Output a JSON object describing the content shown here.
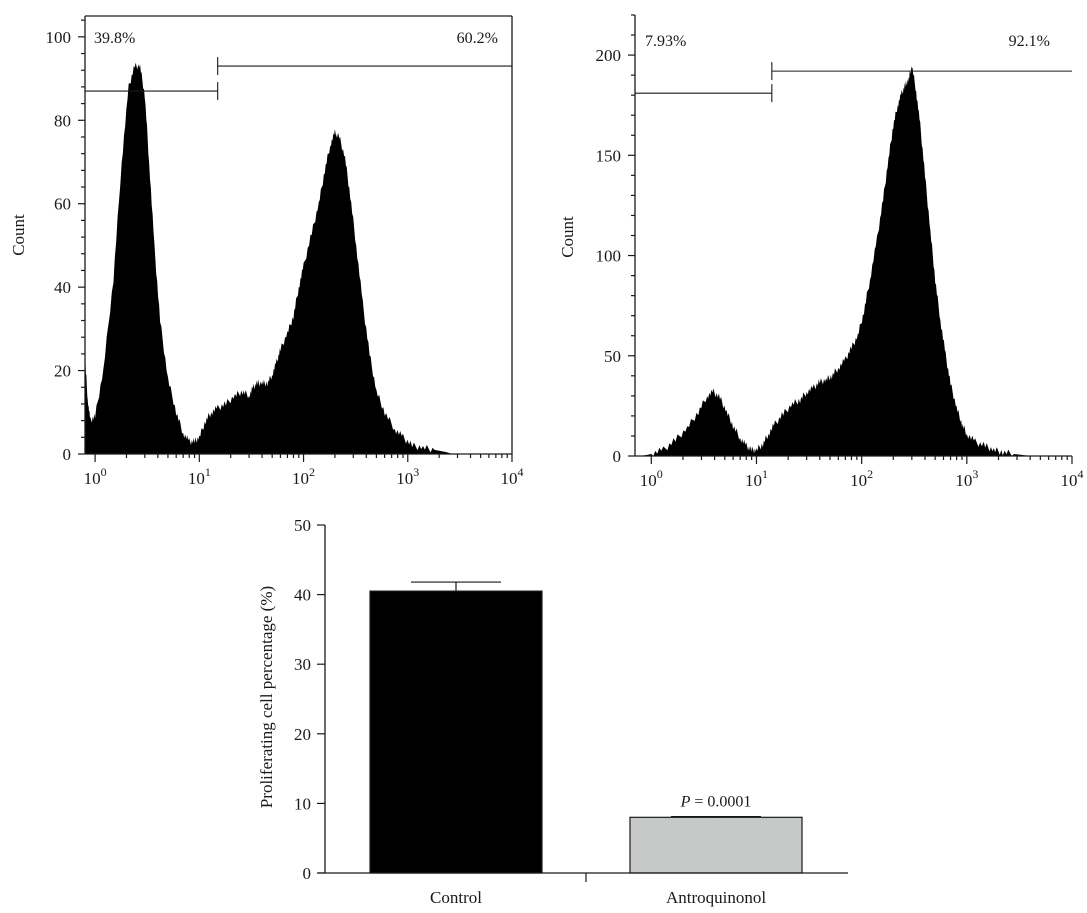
{
  "chart_data": [
    {
      "type": "area",
      "name": "histogram-control",
      "ylabel": "Count",
      "xlabel": "",
      "xscale": "log",
      "xlim": [
        0.8,
        10000
      ],
      "ylim": [
        0,
        105
      ],
      "yticks": [
        0,
        20,
        40,
        60,
        80,
        100
      ],
      "xticks": [
        {
          "value": 1,
          "base": "10",
          "exp": "0"
        },
        {
          "value": 10,
          "base": "10",
          "exp": "1"
        },
        {
          "value": 100,
          "base": "10",
          "exp": "2"
        },
        {
          "value": 1000,
          "base": "10",
          "exp": "3"
        },
        {
          "value": 10000,
          "base": "10",
          "exp": "4"
        }
      ],
      "fill": "#000000",
      "gate_labels": {
        "left": "39.8%",
        "right": "60.2%"
      },
      "gates": {
        "split": 15,
        "left_level": 87,
        "right_level": 93
      },
      "x": [
        0.8,
        0.85,
        0.9,
        1.0,
        1.2,
        1.5,
        1.8,
        2.1,
        2.4,
        2.7,
        3.0,
        3.3,
        3.7,
        4.2,
        5.0,
        6.0,
        7.0,
        8.0,
        9.0,
        10.0,
        11.5,
        13,
        15,
        18,
        22,
        26,
        30,
        33,
        36,
        40,
        45,
        50,
        55,
        60,
        70,
        80,
        90,
        100,
        120,
        140,
        160,
        180,
        200,
        220,
        250,
        280,
        320,
        370,
        430,
        500,
        600,
        750,
        900,
        1100,
        1400,
        1800,
        2300,
        2700
      ],
      "y": [
        23,
        13,
        8,
        9,
        20,
        42,
        70,
        88,
        93,
        93,
        86,
        70,
        50,
        32,
        18,
        10,
        5,
        3,
        3,
        4,
        8,
        10,
        11,
        12,
        14,
        15,
        14,
        16,
        17,
        17,
        17,
        19,
        22,
        25,
        29,
        33,
        40,
        45,
        53,
        60,
        68,
        74,
        77,
        76,
        71,
        62,
        50,
        36,
        24,
        15,
        10,
        6,
        4,
        2,
        1.5,
        1,
        0.5,
        0
      ]
    },
    {
      "type": "area",
      "name": "histogram-antroquinonol",
      "ylabel": "Count",
      "xlabel": "",
      "xscale": "log",
      "xlim": [
        0.7,
        10000
      ],
      "ylim": [
        0,
        220
      ],
      "yticks": [
        0,
        50,
        100,
        150,
        200
      ],
      "xticks": [
        {
          "value": 1,
          "base": "10",
          "exp": "0"
        },
        {
          "value": 10,
          "base": "10",
          "exp": "1"
        },
        {
          "value": 100,
          "base": "10",
          "exp": "2"
        },
        {
          "value": 1000,
          "base": "10",
          "exp": "3"
        },
        {
          "value": 10000,
          "base": "10",
          "exp": "4"
        }
      ],
      "fill": "#000000",
      "gate_labels": {
        "left": "7.93%",
        "right": "92.1%"
      },
      "gates": {
        "split": 14,
        "left_level": 181,
        "right_level": 192
      },
      "x": [
        0.8,
        1.0,
        1.3,
        1.7,
        2.2,
        2.8,
        3.4,
        3.9,
        4.5,
        5.2,
        6.0,
        7.0,
        8.0,
        9.0,
        10.0,
        11.5,
        13,
        15,
        18,
        22,
        26,
        30,
        35,
        40,
        46,
        52,
        60,
        70,
        80,
        92,
        105,
        120,
        140,
        160,
        180,
        200,
        220,
        240,
        260,
        280,
        300,
        330,
        360,
        400,
        450,
        500,
        560,
        630,
        700,
        800,
        900,
        1000,
        1200,
        1500,
        1800,
        2200,
        2800,
        3400,
        4000
      ],
      "y": [
        0,
        1,
        3,
        8,
        14,
        22,
        30,
        32,
        29,
        22,
        15,
        9,
        5,
        3,
        3,
        6,
        11,
        16,
        21,
        26,
        28,
        32,
        34,
        37,
        38,
        40,
        44,
        48,
        54,
        60,
        72,
        88,
        108,
        128,
        148,
        165,
        175,
        181,
        185,
        188,
        195,
        182,
        165,
        140,
        112,
        88,
        68,
        50,
        36,
        24,
        16,
        11,
        7,
        5,
        3,
        2,
        1,
        0.5,
        0
      ]
    },
    {
      "type": "bar",
      "name": "proliferation-bar",
      "categories": [
        "Control",
        "Antroquinonol"
      ],
      "values": [
        40.5,
        8.0
      ],
      "errors": [
        1.3,
        0.1
      ],
      "colors": [
        "#000000",
        "#c7c9c8"
      ],
      "ylabel": "Proliferating cell percentage (%)",
      "xlabel": "",
      "ylim": [
        0,
        50
      ],
      "yticks": [
        0,
        10,
        20,
        30,
        40,
        50
      ],
      "annotation": {
        "italic": "P",
        "text": " = 0.0001",
        "category": "Antroquinonol"
      }
    }
  ]
}
